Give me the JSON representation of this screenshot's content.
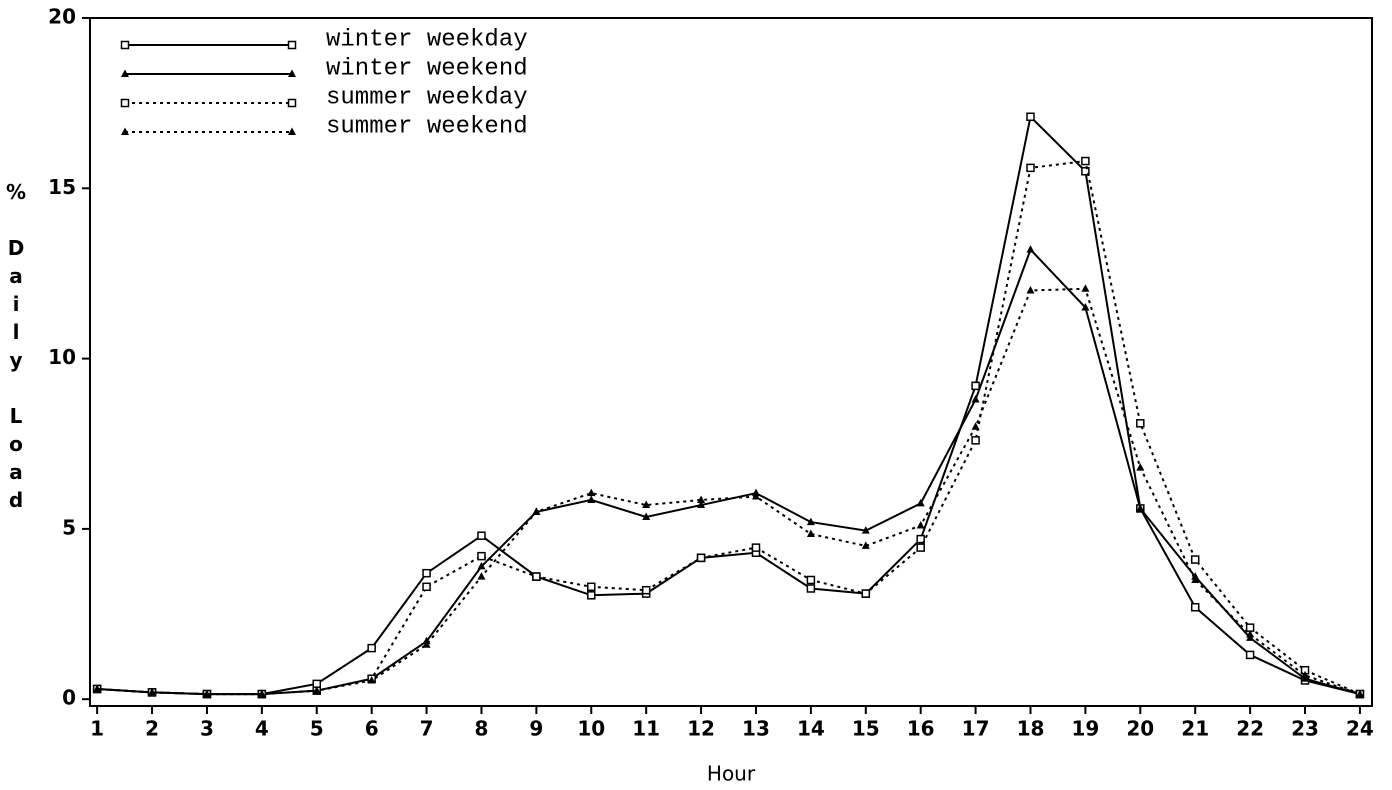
{
  "chart_data": {
    "type": "line",
    "xlabel": "Hour",
    "ylabel": "% Daily Load",
    "x": [
      1,
      2,
      3,
      4,
      5,
      6,
      7,
      8,
      9,
      10,
      11,
      12,
      13,
      14,
      15,
      16,
      17,
      18,
      19,
      20,
      21,
      22,
      23,
      24
    ],
    "xlim": [
      0.87,
      24.22
    ],
    "xticks": [
      1,
      2,
      3,
      4,
      5,
      6,
      7,
      8,
      9,
      10,
      11,
      12,
      13,
      14,
      15,
      16,
      17,
      18,
      19,
      20,
      21,
      22,
      23,
      24
    ],
    "ylim": [
      -0.2,
      20
    ],
    "yticks": [
      0,
      5,
      10,
      15,
      20
    ],
    "legend": "upper left",
    "series": [
      {
        "name": "winter weekday",
        "color": "#000000",
        "style": "solid",
        "marker": "square",
        "values": [
          0.3,
          0.2,
          0.15,
          0.15,
          0.45,
          1.5,
          3.7,
          4.8,
          3.6,
          3.05,
          3.1,
          4.15,
          4.3,
          3.25,
          3.1,
          4.7,
          9.2,
          17.1,
          15.5,
          5.6,
          2.7,
          1.3,
          0.55,
          0.15
        ]
      },
      {
        "name": "winter weekend",
        "color": "#000000",
        "style": "solid",
        "marker": "triangle",
        "values": [
          0.3,
          0.2,
          0.15,
          0.15,
          0.25,
          0.6,
          1.7,
          3.9,
          5.5,
          5.85,
          5.35,
          5.7,
          6.05,
          5.2,
          4.95,
          5.75,
          8.8,
          13.2,
          11.5,
          5.6,
          3.6,
          1.8,
          0.6,
          0.15
        ]
      },
      {
        "name": "summer weekday",
        "color": "#000000",
        "style": "dotted",
        "marker": "square",
        "values": [
          0.3,
          0.2,
          0.15,
          0.15,
          0.25,
          0.6,
          3.3,
          4.2,
          3.6,
          3.3,
          3.2,
          4.15,
          4.45,
          3.5,
          3.1,
          4.45,
          7.6,
          15.6,
          15.8,
          8.1,
          4.1,
          2.1,
          0.85,
          0.15
        ]
      },
      {
        "name": "summer weekend",
        "color": "#000000",
        "style": "dotted",
        "marker": "triangle",
        "values": [
          0.3,
          0.2,
          0.15,
          0.15,
          0.25,
          0.55,
          1.6,
          3.6,
          5.5,
          6.05,
          5.7,
          5.85,
          5.95,
          4.85,
          4.5,
          5.1,
          8.0,
          12.0,
          12.05,
          6.8,
          3.5,
          1.9,
          0.7,
          0.15
        ]
      }
    ]
  }
}
